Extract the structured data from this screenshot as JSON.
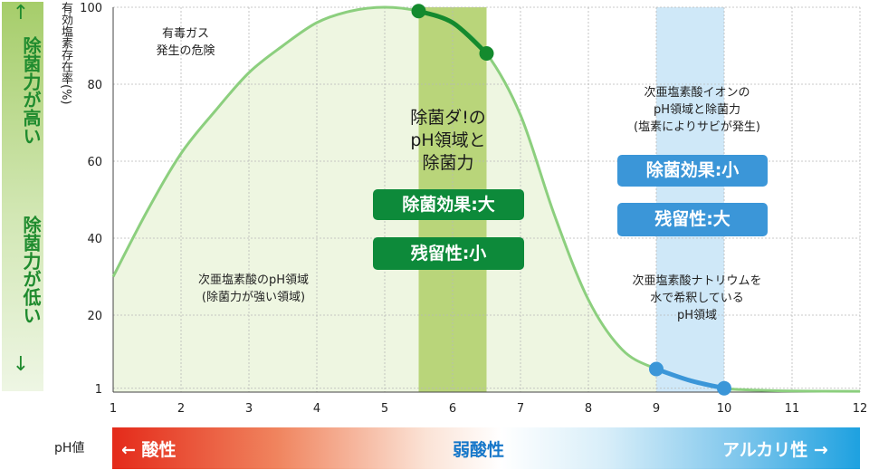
{
  "side": {
    "top_label": "除菌力が高い",
    "bottom_label": "除菌力が低い",
    "arrow_up": "↑",
    "arrow_down": "↓"
  },
  "notes": {
    "toxic_gas": "有毒ガス\n発生の危険",
    "acid_region": "次亜塩素酸のpH領域\n(除菌力が強い領域)",
    "ion_region": "次亜塩素酸イオンの\npH領域と除菌力\n(塩素によりサビが発生)",
    "sodium_region": "次亜塩素酸ナトリウムを\n水で希釈している\npH領域"
  },
  "product": {
    "title": "除菌ダ!の\npH領域と\n除菌力",
    "effect": "除菌効果:大",
    "residual": "残留性:小"
  },
  "ion": {
    "effect": "除菌効果:小",
    "residual": "残留性:大"
  },
  "bottom": {
    "ph_label": "pH値",
    "acidic": "← 酸性",
    "weak_acid": "弱酸性",
    "alkaline": "アルカリ性 →"
  },
  "colors": {
    "curve_light": "#8ccf7e",
    "curve_dark": "#148a2e",
    "curve_blue": "#3b96d8",
    "fill": "#eef6e1",
    "green_band": "#b9d57a",
    "blue_band": "#cfe8f8",
    "grid": "#b8b8b8"
  },
  "chart_data": {
    "type": "line",
    "ylabel": "有効塩素存在率(%)",
    "xlabel": "",
    "x_ticks": [
      1,
      2,
      3,
      4,
      5,
      6,
      7,
      8,
      9,
      10,
      11,
      12
    ],
    "y_ticks": [
      1,
      20,
      40,
      60,
      80,
      100
    ],
    "xlim": [
      1,
      12
    ],
    "ylim": [
      0,
      100
    ],
    "series": [
      {
        "x": [
          1,
          1.5,
          2,
          2.5,
          3,
          3.5,
          4,
          4.5,
          5,
          5.5,
          6,
          6.5,
          7,
          7.5,
          8,
          8.5,
          9,
          9.5,
          10,
          10.5,
          11,
          12
        ],
        "values": [
          30,
          47,
          62,
          73,
          83,
          90,
          96,
          99,
          100,
          99,
          96,
          88,
          72,
          46,
          24,
          11,
          6,
          3,
          1,
          0.5,
          0.3,
          0.2
        ]
      }
    ],
    "highlight_points": [
      {
        "x": 5.5,
        "y": 99
      },
      {
        "x": 6.5,
        "y": 88
      },
      {
        "x": 9,
        "y": 6
      },
      {
        "x": 10,
        "y": 1
      }
    ],
    "bands": [
      {
        "from": 5.5,
        "to": 6.5,
        "color": "green"
      },
      {
        "from": 9,
        "to": 10,
        "color": "blue"
      }
    ],
    "grid": true
  }
}
